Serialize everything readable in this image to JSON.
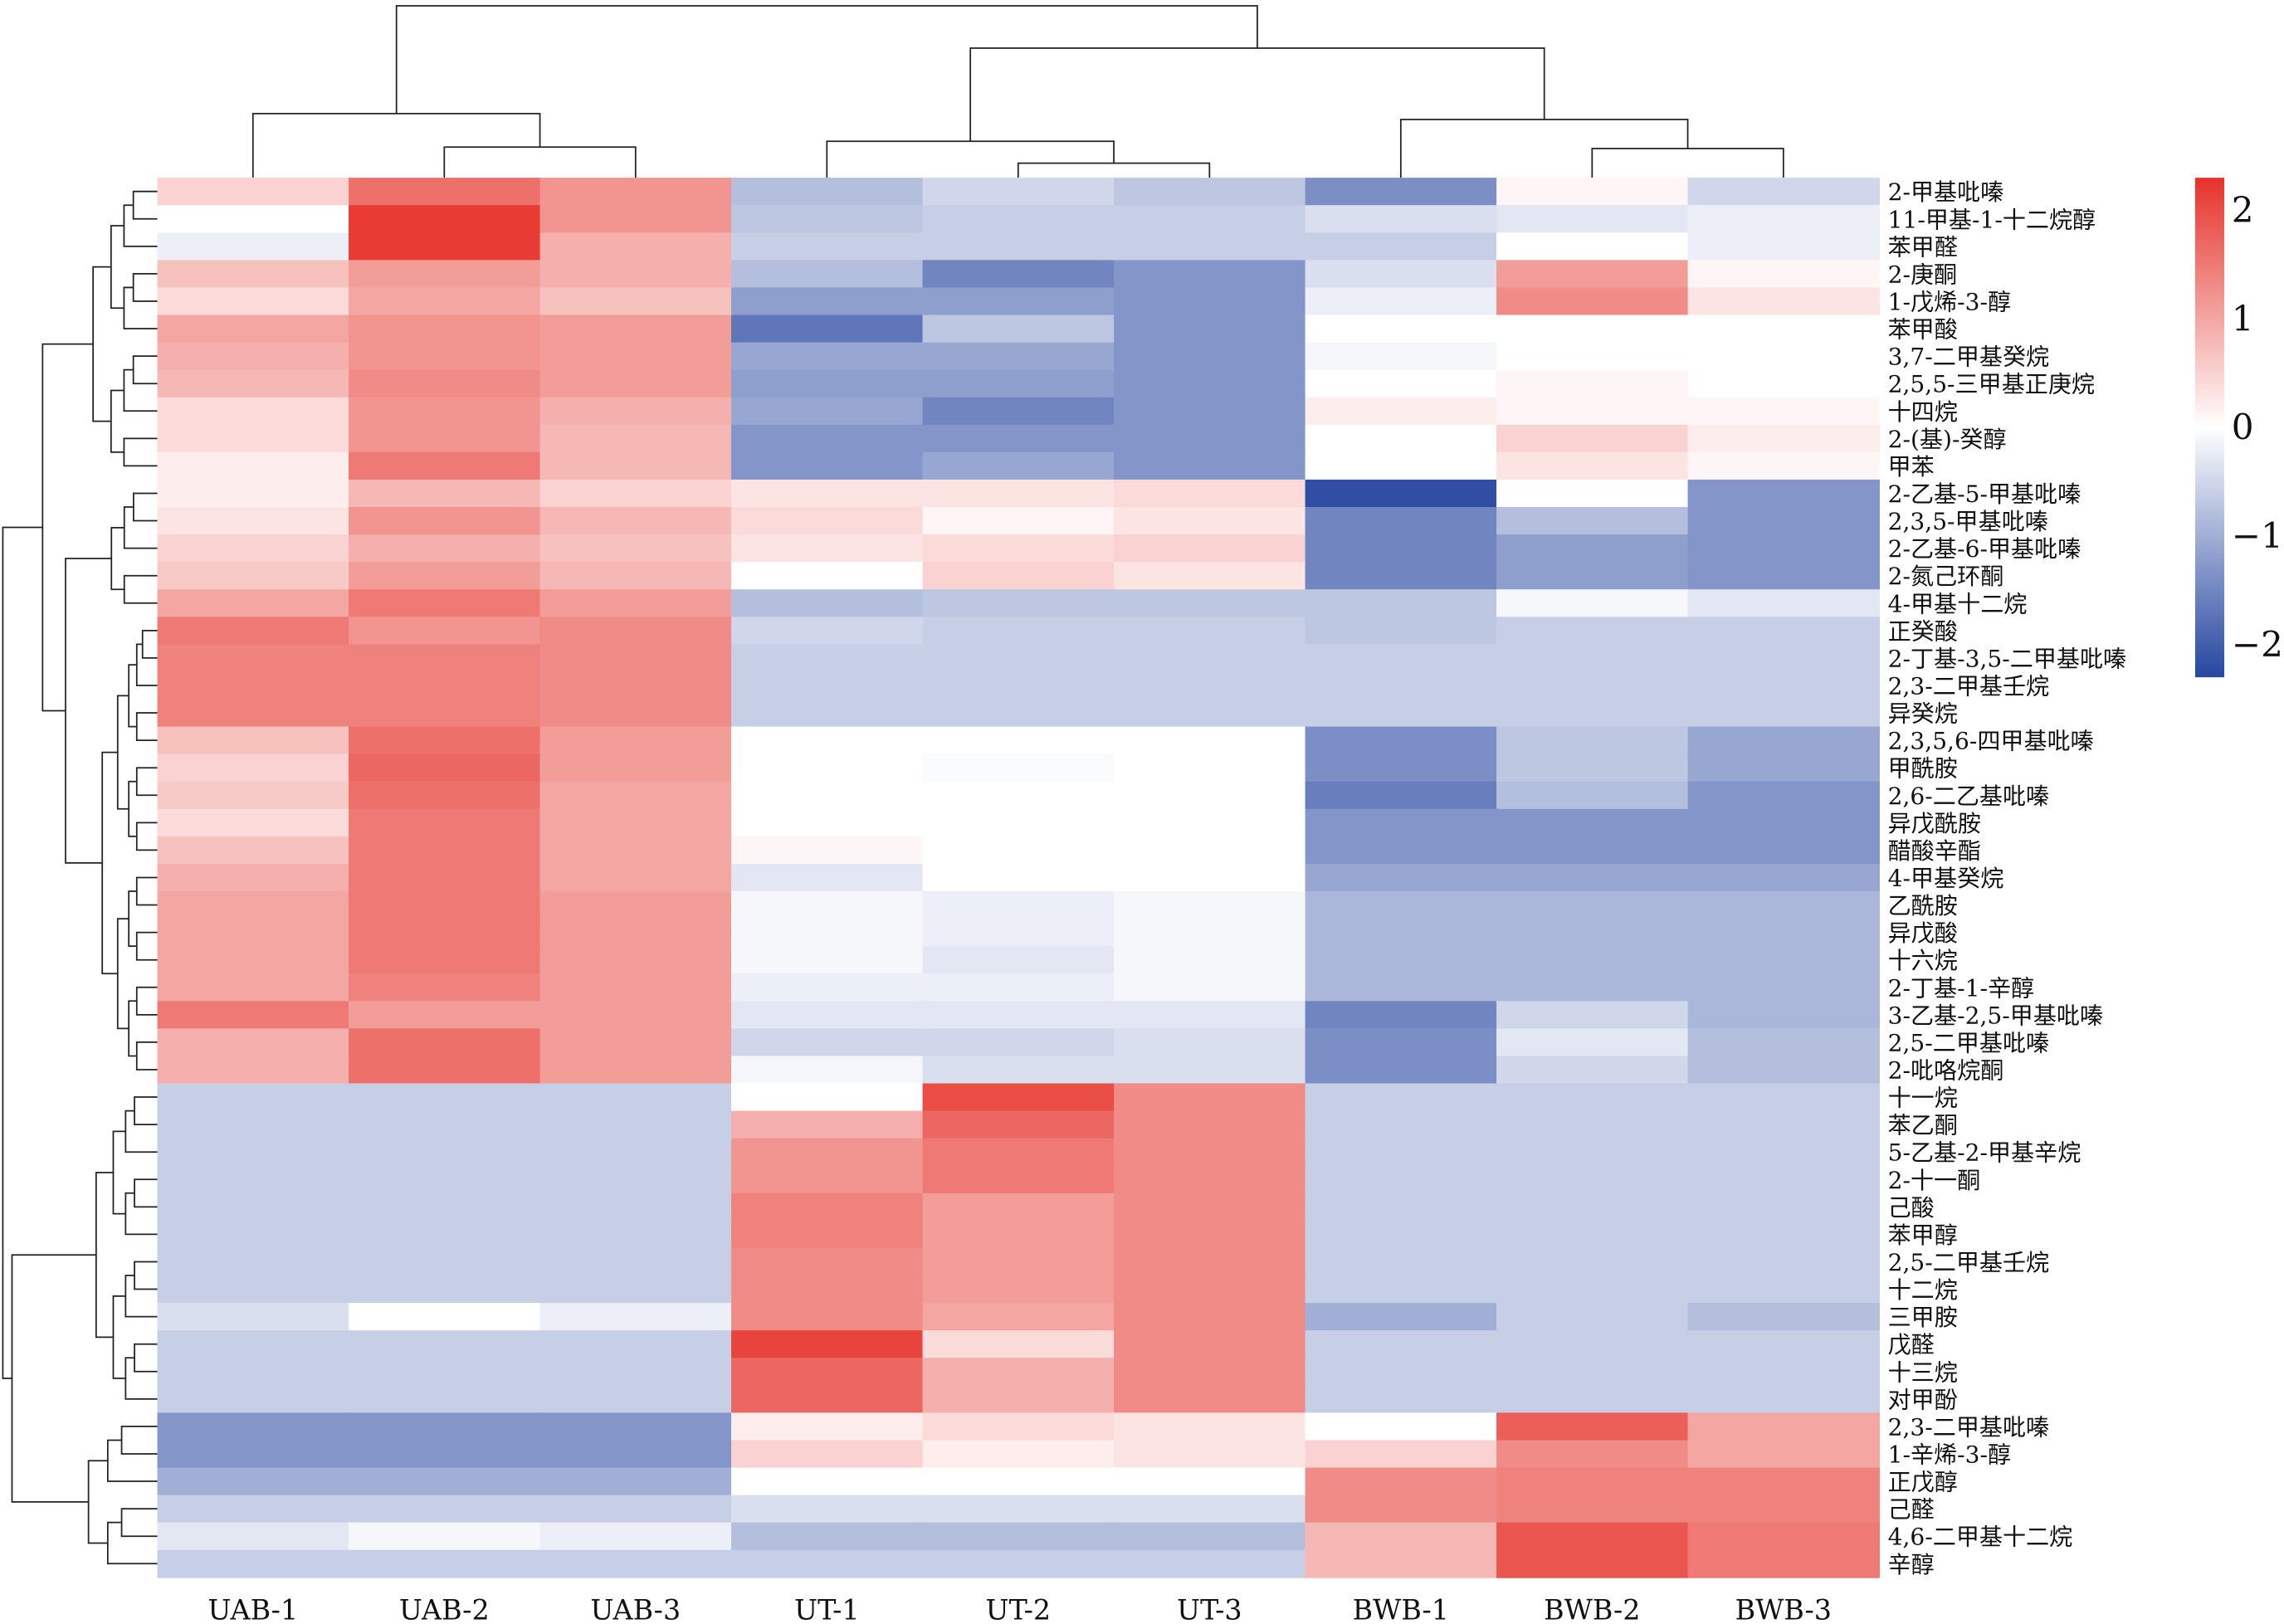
{
  "chart_data": {
    "type": "heatmap",
    "title": "",
    "columns": [
      "UAB-1",
      "UAB-2",
      "UAB-3",
      "UT-1",
      "UT-2",
      "UT-3",
      "BWB-1",
      "BWB-2",
      "BWB-3"
    ],
    "rows": [
      "2-甲基吡嗪",
      "11-甲基-1-十二烷醇",
      "苯甲醛",
      "2-庚酮",
      "1-戊烯-3-醇",
      "苯甲酸",
      "3,7-二甲基癸烷",
      "2,5,5-三甲基正庚烷",
      "十四烷",
      "2-(基)-癸醇",
      "甲苯",
      "2-乙基-5-甲基吡嗪",
      "2,3,5-甲基吡嗪",
      "2-乙基-6-甲基吡嗪",
      "2-氮己环酮",
      "4-甲基十二烷",
      "正癸酸",
      "2-丁基-3,5-二甲基吡嗪",
      "2,3-二甲基壬烷",
      "异癸烷",
      "2,3,5,6-四甲基吡嗪",
      "甲酰胺",
      "2,6-二乙基吡嗪",
      "异戊酰胺",
      "醋酸辛酯",
      "4-甲基癸烷",
      "乙酰胺",
      "异戊酸",
      "十六烷",
      "2-丁基-1-辛醇",
      "3-乙基-2,5-甲基吡嗪",
      "2,5-二甲基吡嗪",
      "2-吡咯烷酮",
      "十一烷",
      "苯乙酮",
      "5-乙基-2-甲基辛烷",
      "2-十一酮",
      "己酸",
      "苯甲醇",
      "2,5-二甲基壬烷",
      "十二烷",
      "三甲胺",
      "戊醛",
      "十三烷",
      "对甲酚",
      "2,3-二甲基吡嗪",
      "1-辛烯-3-醇",
      "正戊醇",
      "己醛",
      "4,6-二甲基十二烷",
      "辛醇"
    ],
    "values": [
      [
        0.5,
        1.6,
        1.2,
        -0.8,
        -0.5,
        -0.7,
        -1.4,
        0.1,
        -0.5
      ],
      [
        0,
        2.2,
        1.2,
        -0.7,
        -0.6,
        -0.6,
        -0.4,
        -0.3,
        -0.2
      ],
      [
        -0.2,
        2.2,
        0.9,
        -0.6,
        -0.6,
        -0.6,
        -0.6,
        0,
        -0.2
      ],
      [
        0.7,
        1.1,
        0.9,
        -0.8,
        -1.5,
        -1.3,
        -0.4,
        1.1,
        0.1
      ],
      [
        0.4,
        1.0,
        0.7,
        -1.2,
        -1.2,
        -1.3,
        -0.2,
        1.3,
        0.3
      ],
      [
        1.0,
        1.2,
        1.1,
        -1.7,
        -0.7,
        -1.3,
        0,
        0,
        0
      ],
      [
        0.9,
        1.2,
        1.1,
        -1.1,
        -1.1,
        -1.3,
        -0.1,
        0,
        0
      ],
      [
        0.8,
        1.3,
        1.1,
        -1.2,
        -1.2,
        -1.3,
        0,
        0.1,
        0
      ],
      [
        0.4,
        1.2,
        0.9,
        -1.1,
        -1.5,
        -1.3,
        0.2,
        0.1,
        0.1
      ],
      [
        0.4,
        1.2,
        0.8,
        -1.3,
        -1.3,
        -1.3,
        0,
        0.5,
        0.2
      ],
      [
        0.2,
        1.5,
        0.8,
        -1.3,
        -1.1,
        -1.3,
        0,
        0.3,
        0.1
      ],
      [
        0.2,
        0.8,
        0.5,
        0.3,
        0.3,
        0.4,
        -2.2,
        0,
        -1.3
      ],
      [
        0.3,
        1.2,
        0.8,
        0.4,
        0.1,
        0.3,
        -1.5,
        -0.8,
        -1.3
      ],
      [
        0.5,
        0.9,
        0.7,
        0.3,
        0.4,
        0.5,
        -1.5,
        -1.2,
        -1.3
      ],
      [
        0.6,
        1.1,
        0.8,
        0,
        0.5,
        0.3,
        -1.5,
        -1.2,
        -1.3
      ],
      [
        1.0,
        1.5,
        1.1,
        -0.8,
        -0.7,
        -0.7,
        -0.7,
        -0.1,
        -0.3
      ],
      [
        1.5,
        1.2,
        1.3,
        -0.5,
        -0.6,
        -0.6,
        -0.7,
        -0.6,
        -0.6
      ],
      [
        1.4,
        1.4,
        1.3,
        -0.6,
        -0.6,
        -0.6,
        -0.6,
        -0.6,
        -0.6
      ],
      [
        1.4,
        1.4,
        1.3,
        -0.6,
        -0.6,
        -0.6,
        -0.6,
        -0.6,
        -0.6
      ],
      [
        1.4,
        1.4,
        1.3,
        -0.6,
        -0.6,
        -0.6,
        -0.6,
        -0.6,
        -0.6
      ],
      [
        0.7,
        1.6,
        1.1,
        0,
        0,
        0,
        -1.4,
        -0.7,
        -1.1
      ],
      [
        0.5,
        1.7,
        1.1,
        0,
        -0.05,
        0,
        -1.4,
        -0.7,
        -1.1
      ],
      [
        0.6,
        1.6,
        1.0,
        0,
        0,
        0,
        -1.6,
        -0.8,
        -1.3
      ],
      [
        0.4,
        1.5,
        1.0,
        0,
        0,
        0,
        -1.3,
        -1.3,
        -1.3
      ],
      [
        0.7,
        1.5,
        1.0,
        0.1,
        0,
        0,
        -1.3,
        -1.3,
        -1.3
      ],
      [
        0.9,
        1.5,
        1.0,
        -0.3,
        0,
        0,
        -1.1,
        -1.1,
        -1.1
      ],
      [
        1.0,
        1.5,
        1.1,
        -0.1,
        -0.2,
        -0.1,
        -0.9,
        -0.9,
        -0.9
      ],
      [
        1.0,
        1.5,
        1.1,
        -0.1,
        -0.2,
        -0.1,
        -0.9,
        -0.9,
        -0.9
      ],
      [
        1.0,
        1.5,
        1.1,
        -0.1,
        -0.3,
        -0.1,
        -0.9,
        -0.9,
        -0.9
      ],
      [
        1.0,
        1.4,
        1.1,
        -0.2,
        -0.2,
        -0.1,
        -0.9,
        -0.9,
        -0.9
      ],
      [
        1.5,
        1.1,
        1.1,
        -0.3,
        -0.3,
        -0.3,
        -1.5,
        -0.5,
        -0.9
      ],
      [
        0.9,
        1.6,
        1.1,
        -0.5,
        -0.5,
        -0.4,
        -1.4,
        -0.3,
        -0.8
      ],
      [
        0.9,
        1.6,
        1.1,
        -0.1,
        -0.4,
        -0.4,
        -1.4,
        -0.5,
        -0.8
      ],
      [
        -0.6,
        -0.6,
        -0.6,
        0,
        2.0,
        1.3,
        -0.6,
        -0.6,
        -0.6
      ],
      [
        -0.6,
        -0.6,
        -0.6,
        0.9,
        1.7,
        1.3,
        -0.6,
        -0.6,
        -0.6
      ],
      [
        -0.6,
        -0.6,
        -0.6,
        1.2,
        1.5,
        1.3,
        -0.6,
        -0.6,
        -0.6
      ],
      [
        -0.6,
        -0.6,
        -0.6,
        1.2,
        1.5,
        1.3,
        -0.6,
        -0.6,
        -0.6
      ],
      [
        -0.6,
        -0.6,
        -0.6,
        1.4,
        1.1,
        1.3,
        -0.6,
        -0.6,
        -0.6
      ],
      [
        -0.6,
        -0.6,
        -0.6,
        1.4,
        1.1,
        1.3,
        -0.6,
        -0.6,
        -0.6
      ],
      [
        -0.6,
        -0.6,
        -0.6,
        1.3,
        1.1,
        1.3,
        -0.6,
        -0.6,
        -0.6
      ],
      [
        -0.6,
        -0.6,
        -0.6,
        1.3,
        1.1,
        1.3,
        -0.6,
        -0.6,
        -0.6
      ],
      [
        -0.4,
        0,
        -0.2,
        1.3,
        1.0,
        1.3,
        -1.0,
        -0.6,
        -0.8
      ],
      [
        -0.6,
        -0.6,
        -0.6,
        2.1,
        0.4,
        1.3,
        -0.6,
        -0.6,
        -0.6
      ],
      [
        -0.6,
        -0.6,
        -0.6,
        1.7,
        0.9,
        1.3,
        -0.6,
        -0.6,
        -0.6
      ],
      [
        -0.6,
        -0.6,
        -0.6,
        1.7,
        0.9,
        1.3,
        -0.6,
        -0.6,
        -0.6
      ],
      [
        -1.3,
        -1.3,
        -1.3,
        0.2,
        0.4,
        0.3,
        0,
        1.8,
        1.0
      ],
      [
        -1.3,
        -1.3,
        -1.3,
        0.5,
        0.2,
        0.3,
        0.5,
        1.3,
        1.0
      ],
      [
        -1.0,
        -1.0,
        -1.0,
        0,
        0,
        0,
        1.3,
        1.4,
        1.4
      ],
      [
        -0.6,
        -0.6,
        -0.6,
        -0.4,
        -0.4,
        -0.4,
        1.3,
        1.4,
        1.4
      ],
      [
        -0.3,
        -0.1,
        -0.2,
        -0.8,
        -0.8,
        -0.8,
        0.8,
        1.9,
        1.5
      ],
      [
        -0.6,
        -0.6,
        -0.6,
        -0.6,
        -0.6,
        -0.6,
        0.8,
        1.9,
        1.5
      ]
    ],
    "color_scale": {
      "min": -2.3,
      "max": 2.3,
      "low": "#2646a0",
      "mid": "#ffffff",
      "high": "#e6322a"
    },
    "colorbar_ticks": [
      "2",
      "1",
      "0",
      "−1",
      "−2"
    ],
    "colorbar_tick_values": [
      2,
      1,
      0,
      -1,
      -2
    ],
    "legend_position": "right",
    "dendrograms": {
      "rows": true,
      "columns": true
    }
  }
}
